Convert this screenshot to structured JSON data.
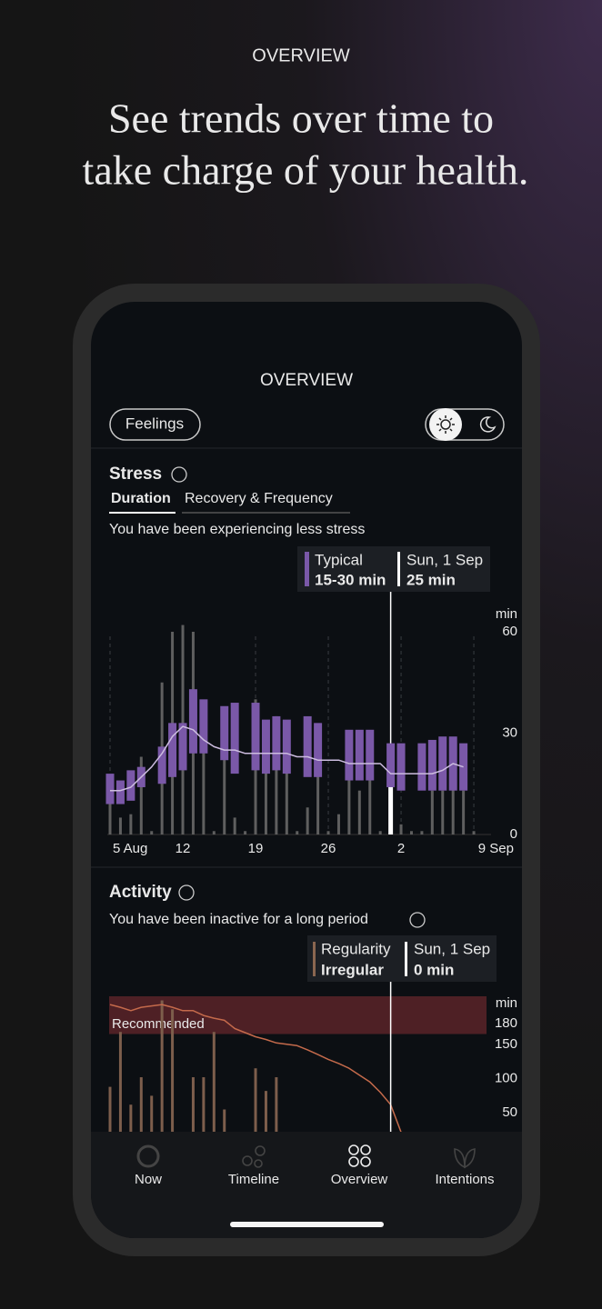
{
  "header": {
    "eyebrow": "OVERVIEW",
    "headline": [
      "See trends over time to",
      "take charge of your health."
    ]
  },
  "app": {
    "title": "OVERVIEW",
    "feelings_button": "Feelings",
    "stress": {
      "title": "Stress",
      "tabs": [
        "Duration",
        "Recovery & Frequency"
      ],
      "message": "You have been experiencing less stress",
      "tooltip": {
        "label": "Typical",
        "value": "15-30 min",
        "date": "Sun, 1 Sep",
        "date_value": "25 min"
      },
      "chart_data": {
        "type": "box",
        "y_unit": "min",
        "categories": [
          "5 Aug",
          null,
          null,
          null,
          null,
          null,
          null,
          "12",
          null,
          null,
          null,
          null,
          null,
          null,
          "19",
          null,
          null,
          null,
          null,
          null,
          null,
          "26",
          null,
          null,
          null,
          null,
          null,
          null,
          "2",
          null,
          null,
          null,
          null,
          null,
          null,
          "9 Sep"
        ],
        "box_low": [
          9,
          9,
          10,
          14,
          null,
          15,
          17,
          19,
          24,
          24,
          null,
          22,
          18,
          null,
          19,
          18,
          19,
          18,
          null,
          17,
          17,
          null,
          null,
          16,
          16,
          16,
          null,
          14,
          13,
          null,
          13,
          13,
          13,
          13,
          13,
          null
        ],
        "box_high": [
          18,
          16,
          19,
          20,
          null,
          26,
          33,
          33,
          43,
          40,
          null,
          38,
          39,
          null,
          39,
          34,
          35,
          34,
          null,
          35,
          33,
          null,
          null,
          31,
          31,
          31,
          null,
          27,
          27,
          null,
          27,
          28,
          29,
          29,
          27,
          null
        ],
        "totals": [
          10,
          5,
          6,
          23,
          1,
          45,
          60,
          62,
          60,
          26,
          1,
          36,
          5,
          1,
          40,
          20,
          35,
          22,
          1,
          8,
          18,
          1,
          6,
          20,
          13,
          30,
          1,
          25,
          3,
          1,
          1,
          13,
          13,
          18,
          13,
          1
        ],
        "trend": [
          13,
          13,
          14,
          17,
          20,
          24,
          29,
          32,
          31,
          28,
          26,
          25,
          25,
          24,
          24,
          24,
          24,
          24,
          23,
          23,
          22,
          22,
          22,
          21,
          21,
          21,
          21,
          18,
          18,
          18,
          18,
          18,
          19,
          21,
          20,
          null
        ],
        "selected_index": 27,
        "box_color": "#7a58a8",
        "total_color": "#5f5f5f",
        "trend_color": "#cdbde0",
        "ylim": [
          0,
          60
        ],
        "yticks": [
          0,
          30,
          60
        ]
      }
    },
    "activity": {
      "title": "Activity",
      "message": "You have been inactive for a long period",
      "tooltip": {
        "label": "Regularity",
        "value": "Irregular",
        "date": "Sun, 1 Sep",
        "date_value": "0 min"
      },
      "chart_data": {
        "type": "bar",
        "y_unit": "min",
        "band_label": "Recommended",
        "recommended_range": [
          165,
          220
        ],
        "values": [
          88,
          168,
          62,
          102,
          75,
          214,
          201,
          null,
          102,
          102,
          168,
          55,
          null,
          null,
          115,
          82,
          102,
          null,
          null,
          null,
          null,
          null,
          null,
          null,
          null,
          null,
          null,
          null,
          null,
          null,
          null,
          null,
          null,
          null,
          null,
          null
        ],
        "trend": [
          208,
          204,
          199,
          204,
          206,
          208,
          204,
          199,
          199,
          192,
          188,
          185,
          173,
          167,
          161,
          157,
          152,
          150,
          148,
          142,
          135,
          128,
          122,
          115,
          105,
          95,
          80,
          62,
          22,
          null,
          null,
          null,
          null,
          null,
          null,
          null
        ],
        "selected_index": 27,
        "bar_color": "#7d5e4c",
        "trend_color": "#c46a4b",
        "band_color": "#5b2329",
        "ylim": [
          0,
          220
        ],
        "yticks": [
          180,
          150,
          100,
          50
        ]
      }
    },
    "nav": [
      "Now",
      "Timeline",
      "Overview",
      "Intentions"
    ],
    "nav_active": 2
  }
}
